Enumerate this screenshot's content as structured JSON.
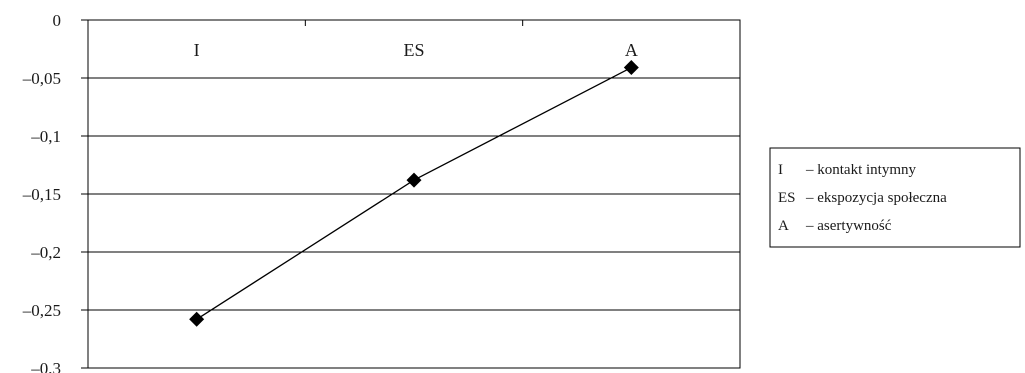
{
  "chart_data": {
    "type": "line",
    "categories": [
      "I",
      "ES",
      "A"
    ],
    "series": [
      {
        "values": [
          -0.258,
          -0.138,
          -0.041
        ]
      }
    ],
    "ylim": [
      -0.3,
      0
    ],
    "yticks": [
      "0",
      "–0,05",
      "–0,1",
      "–0,15",
      "–0,2",
      "–0,25",
      "–0,3"
    ],
    "grid": true,
    "legend_position": "right",
    "legend": [
      {
        "abbr": "I",
        "desc": "– kontakt intymny"
      },
      {
        "abbr": "ES",
        "desc": "– ekspozycja społeczna"
      },
      {
        "abbr": "A",
        "desc": "– asertywność"
      }
    ],
    "colors": {
      "line": "#000000",
      "grid": "#000000",
      "marker": "#000000"
    }
  }
}
